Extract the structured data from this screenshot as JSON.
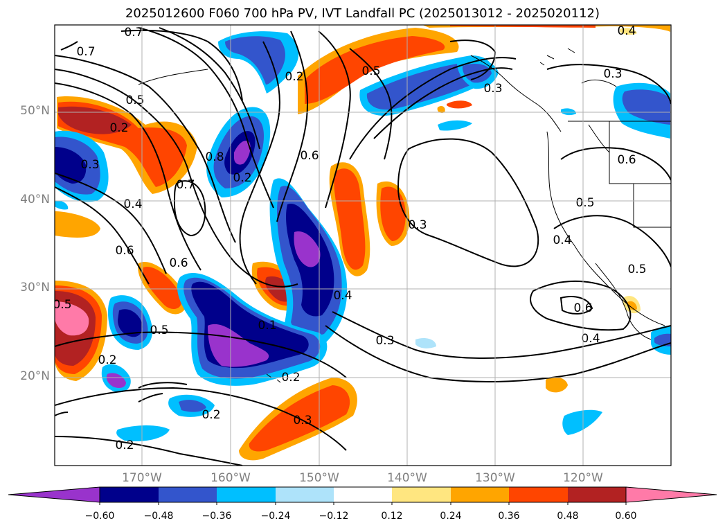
{
  "title": "2025012600 F060 700 hPa PV, IVT Landfall PC (2025013012 - 2025020112)",
  "map": {
    "lat_labels": [
      "50°N",
      "40°N",
      "30°N",
      "20°N"
    ],
    "lon_labels": [
      "170°W",
      "160°W",
      "150°W",
      "140°W",
      "130°W",
      "120°W"
    ],
    "contour_labels": [
      "0.7",
      "0.7",
      "0.5",
      "0.2",
      "0.3",
      "0.4",
      "0.6",
      "0.8",
      "0.2",
      "0.2",
      "0.5",
      "0.3",
      "0.6",
      "0.7",
      "0.6",
      "0.5",
      "0.1",
      "0.4",
      "0.3",
      "0.3",
      "0.2",
      "0.2",
      "0.3",
      "0.2",
      "0.5",
      "0.6",
      "0.5",
      "0.4",
      "0.6",
      "0.4",
      "0.3",
      "0.4",
      "0.2",
      "0.5"
    ]
  },
  "colorbar": {
    "ticks": [
      "−0.60",
      "−0.48",
      "−0.36",
      "−0.24",
      "−0.12",
      "0.12",
      "0.24",
      "0.36",
      "0.48",
      "0.60"
    ],
    "colors": [
      "#9933cc",
      "#00008b",
      "#3355cc",
      "#00bfff",
      "#aee3fa",
      "#ffffff",
      "#ffe680",
      "#ffa500",
      "#ff4500",
      "#b22222",
      "#ff7aa8"
    ]
  }
}
